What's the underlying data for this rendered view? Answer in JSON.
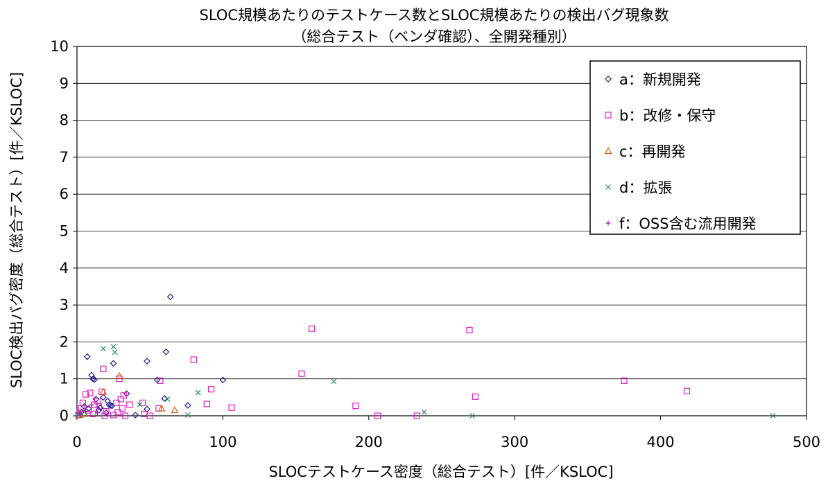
{
  "chart_data": {
    "type": "scatter",
    "title": "SLOC規模あたりのテストケース数とSLOC規模あたりの検出バグ現象数",
    "subtitle": "（総合テスト（ベンダ確認）、全開発種別）",
    "xlabel": "SLOCテストケース密度（総合テスト）[件／KSLOC]",
    "ylabel": "SLOC検出バグ密度（総合テスト）[件／KSLOC]",
    "xlim": [
      0,
      500
    ],
    "ylim": [
      0,
      10
    ],
    "x_ticks": [
      "0",
      "100",
      "200",
      "300",
      "400",
      "500"
    ],
    "y_ticks": [
      "0",
      "1",
      "2",
      "3",
      "4",
      "5",
      "6",
      "7",
      "8",
      "9",
      "10"
    ],
    "grid": "horizontal",
    "legend_position": "top-right",
    "series": [
      {
        "name": "a：新規開発",
        "marker": "diamond",
        "color": "#1f1a8c",
        "points": [
          [
            64,
            3.22
          ],
          [
            7,
            1.6
          ],
          [
            25,
            1.42
          ],
          [
            48,
            1.48
          ],
          [
            61,
            1.73
          ],
          [
            10,
            1.1
          ],
          [
            11,
            1.0
          ],
          [
            12,
            0.98
          ],
          [
            55,
            0.97
          ],
          [
            100,
            0.97
          ],
          [
            60,
            0.47
          ],
          [
            34,
            0.6
          ],
          [
            21,
            0.4
          ],
          [
            22,
            0.3
          ],
          [
            23,
            0.28
          ],
          [
            24,
            0.27
          ],
          [
            16,
            0.22
          ],
          [
            18,
            0.5
          ],
          [
            5,
            0.25
          ],
          [
            8,
            0.2
          ],
          [
            3,
            0.1
          ],
          [
            2,
            0.05
          ],
          [
            76,
            0.28
          ],
          [
            48,
            0.18
          ],
          [
            40,
            0.02
          ],
          [
            13,
            0.45
          ],
          [
            15,
            0.15
          ],
          [
            20,
            0.08
          ]
        ]
      },
      {
        "name": "b：改修・保守",
        "marker": "square",
        "color": "#e020c8",
        "points": [
          [
            161,
            2.36
          ],
          [
            269,
            2.32
          ],
          [
            80,
            1.52
          ],
          [
            18,
            1.27
          ],
          [
            154,
            1.14
          ],
          [
            29,
            1.0
          ],
          [
            57,
            0.95
          ],
          [
            375,
            0.95
          ],
          [
            92,
            0.72
          ],
          [
            418,
            0.67
          ],
          [
            273,
            0.52
          ],
          [
            89,
            0.32
          ],
          [
            191,
            0.27
          ],
          [
            106,
            0.22
          ],
          [
            56,
            0.2
          ],
          [
            206,
            0.0
          ],
          [
            233,
            0.0
          ],
          [
            50,
            0.0
          ],
          [
            36,
            0.3
          ],
          [
            32,
            0.55
          ],
          [
            30,
            0.45
          ],
          [
            27,
            0.35
          ],
          [
            20,
            0.12
          ],
          [
            15,
            0.25
          ],
          [
            12,
            0.3
          ],
          [
            9,
            0.62
          ],
          [
            6,
            0.58
          ],
          [
            4,
            0.35
          ],
          [
            3,
            0.2
          ],
          [
            2,
            0.08
          ],
          [
            1,
            0.02
          ],
          [
            8,
            0.15
          ],
          [
            11,
            0.05
          ],
          [
            14,
            0.4
          ],
          [
            17,
            0.65
          ],
          [
            19,
            0.0
          ],
          [
            25,
            0.02
          ],
          [
            28,
            0.1
          ],
          [
            31,
            0.2
          ],
          [
            33,
            0.0
          ],
          [
            45,
            0.35
          ],
          [
            46,
            0.05
          ]
        ]
      },
      {
        "name": "c：再開発",
        "marker": "triangle",
        "color": "#e06010",
        "points": [
          [
            29,
            1.08
          ],
          [
            18,
            0.65
          ],
          [
            67,
            0.15
          ],
          [
            58,
            0.2
          ],
          [
            5,
            0.05
          ],
          [
            2,
            0.02
          ]
        ]
      },
      {
        "name": "d：拡張",
        "marker": "x",
        "color": "#2a8a5a",
        "points": [
          [
            25,
            1.87
          ],
          [
            18,
            1.82
          ],
          [
            26,
            1.72
          ],
          [
            176,
            0.93
          ],
          [
            62,
            0.45
          ],
          [
            83,
            0.63
          ],
          [
            43,
            0.3
          ],
          [
            238,
            0.1
          ],
          [
            271,
            0.0
          ],
          [
            477,
            0.0
          ],
          [
            76,
            0.02
          ],
          [
            3,
            0.05
          ],
          [
            1,
            0.02
          ],
          [
            5,
            0.12
          ]
        ]
      },
      {
        "name": "f：OSS含む流用開発",
        "marker": "plus",
        "color": "#b010b0",
        "points": [
          [
            10,
            0.3
          ],
          [
            6,
            0.12
          ],
          [
            2,
            0.05
          ],
          [
            14,
            0.08
          ]
        ]
      }
    ]
  }
}
